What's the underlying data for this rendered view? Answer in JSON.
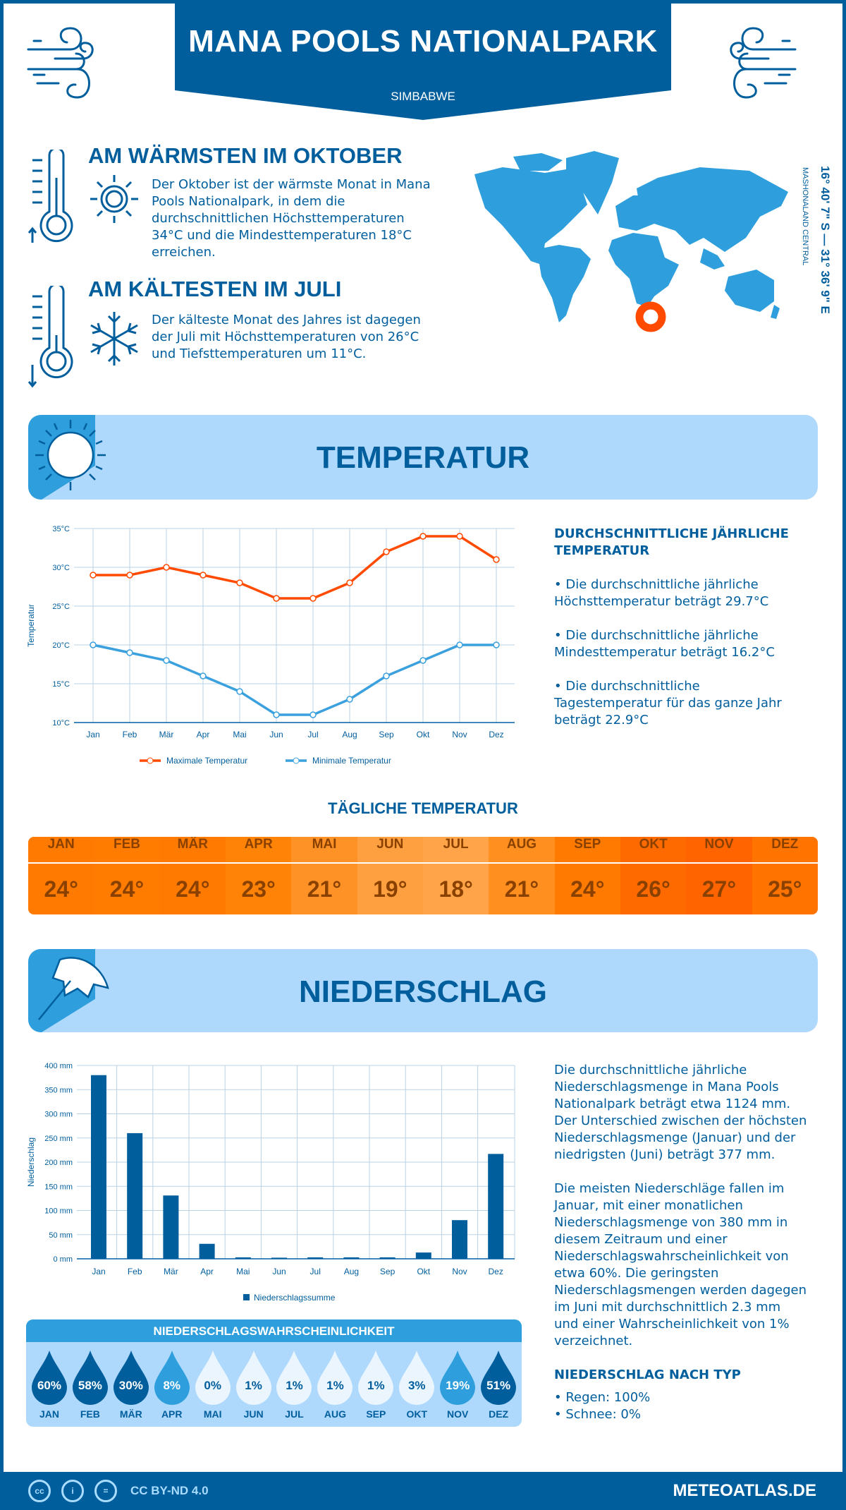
{
  "header": {
    "title": "MANA POOLS NATIONALPARK",
    "country": "SIMBABWE"
  },
  "warmest": {
    "heading": "AM WÄRMSTEN IM OKTOBER",
    "text": "Der Oktober ist der wärmste Monat in Mana Pools Nationalpark, in dem die durchschnittlichen Höchsttemperaturen 34°C und die Mindesttemperaturen 18°C erreichen."
  },
  "coldest": {
    "heading": "AM KÄLTESTEN IM JULI",
    "text": "Der kälteste Monat des Jahres ist dagegen der Juli mit Höchsttemperaturen von 26°C und Tiefsttemperaturen um 11°C."
  },
  "location": {
    "coords": "16° 40' 7\" S — 31° 36' 9\" E",
    "region": "MASHONALAND CENTRAL"
  },
  "temperature_section": {
    "title": "TEMPERATUR",
    "annual_heading": "DURCHSCHNITTLICHE JÄHRLICHE TEMPERATUR",
    "bullets": [
      "• Die durchschnittliche jährliche Höchsttemperatur beträgt 29.7°C",
      "• Die durchschnittliche jährliche Mindesttemperatur beträgt 16.2°C",
      "• Die durchschnittliche Tagestemperatur für das ganze Jahr beträgt 22.9°C"
    ],
    "daily_title": "TÄGLICHE TEMPERATUR",
    "daily": [
      {
        "month": "JAN",
        "value": "24°",
        "color": "#ff7a00"
      },
      {
        "month": "FEB",
        "value": "24°",
        "color": "#ff7c00"
      },
      {
        "month": "MÄR",
        "value": "24°",
        "color": "#ff7a00"
      },
      {
        "month": "APR",
        "value": "23°",
        "color": "#ff8306"
      },
      {
        "month": "MAI",
        "value": "21°",
        "color": "#ff9226"
      },
      {
        "month": "JUN",
        "value": "19°",
        "color": "#ffa040"
      },
      {
        "month": "JUL",
        "value": "18°",
        "color": "#ffa448"
      },
      {
        "month": "AUG",
        "value": "21°",
        "color": "#ff9020"
      },
      {
        "month": "SEP",
        "value": "24°",
        "color": "#ff7a00"
      },
      {
        "month": "OKT",
        "value": "26°",
        "color": "#ff6a00"
      },
      {
        "month": "NOV",
        "value": "27°",
        "color": "#ff6400"
      },
      {
        "month": "DEZ",
        "value": "25°",
        "color": "#ff7300"
      }
    ]
  },
  "precip_section": {
    "title": "NIEDERSCHLAG",
    "paragraph1": "Die durchschnittliche jährliche Niederschlagsmenge in Mana Pools Nationalpark beträgt etwa 1124 mm. Der Unterschied zwischen der höchsten Niederschlagsmenge (Januar) und der niedrigsten (Juni) beträgt 377 mm.",
    "paragraph2": "Die meisten Niederschläge fallen im Januar, mit einer monatlichen Niederschlagsmenge von 380 mm in diesem Zeitraum und einer Niederschlagswahrscheinlichkeit von etwa 60%. Die geringsten Niederschlagsmengen werden dagegen im Juni mit durchschnittlich 2.3 mm und einer Wahrscheinlichkeit von 1% verzeichnet.",
    "type_heading": "NIEDERSCHLAG NACH TYP",
    "types": [
      "• Regen: 100%",
      "• Schnee: 0%"
    ],
    "prob_title": "NIEDERSCHLAGSWAHRSCHEINLICHKEIT",
    "probability": [
      {
        "month": "JAN",
        "value": "60%",
        "level": "high"
      },
      {
        "month": "FEB",
        "value": "58%",
        "level": "high"
      },
      {
        "month": "MÄR",
        "value": "30%",
        "level": "high"
      },
      {
        "month": "APR",
        "value": "8%",
        "level": "mid"
      },
      {
        "month": "MAI",
        "value": "0%",
        "level": "low"
      },
      {
        "month": "JUN",
        "value": "1%",
        "level": "low"
      },
      {
        "month": "JUL",
        "value": "1%",
        "level": "low"
      },
      {
        "month": "AUG",
        "value": "1%",
        "level": "low"
      },
      {
        "month": "SEP",
        "value": "1%",
        "level": "low"
      },
      {
        "month": "OKT",
        "value": "3%",
        "level": "low"
      },
      {
        "month": "NOV",
        "value": "19%",
        "level": "mid"
      },
      {
        "month": "DEZ",
        "value": "51%",
        "level": "high"
      }
    ]
  },
  "colors": {
    "primary": "#005e9d",
    "accent": "#2e9fdc",
    "light": "#aed9fc",
    "max_line": "#ff4a00",
    "min_line": "#3aa0de",
    "marker": "#ff4a00"
  },
  "footer": {
    "license": "CC BY-ND 4.0",
    "site": "METEOATLAS.DE",
    "icons": [
      "cc-icon",
      "by-icon",
      "nd-icon"
    ]
  },
  "chart_data": [
    {
      "type": "line",
      "ylabel": "Temperatur",
      "ylim": [
        10,
        35
      ],
      "yticks": [
        "10°C",
        "15°C",
        "20°C",
        "25°C",
        "30°C",
        "35°C"
      ],
      "grid": true,
      "legend": "bottom",
      "categories": [
        "Jan",
        "Feb",
        "Mär",
        "Apr",
        "Mai",
        "Jun",
        "Jul",
        "Aug",
        "Sep",
        "Okt",
        "Nov",
        "Dez"
      ],
      "series": [
        {
          "name": "Maximale Temperatur",
          "values": [
            29,
            29,
            30,
            29,
            28,
            26,
            26,
            28,
            32,
            34,
            34,
            31
          ]
        },
        {
          "name": "Minimale Temperatur",
          "values": [
            20,
            19,
            18,
            16,
            14,
            11,
            11,
            13,
            16,
            18,
            20,
            20
          ]
        }
      ]
    },
    {
      "type": "bar",
      "ylabel": "Niederschlag",
      "ylim": [
        0,
        400
      ],
      "yticks": [
        "0 mm",
        "50 mm",
        "100 mm",
        "150 mm",
        "200 mm",
        "250 mm",
        "300 mm",
        "350 mm",
        "400 mm"
      ],
      "grid": true,
      "legend": "bottom",
      "categories": [
        "Jan",
        "Feb",
        "Mär",
        "Apr",
        "Mai",
        "Jun",
        "Jul",
        "Aug",
        "Sep",
        "Okt",
        "Nov",
        "Dez"
      ],
      "series": [
        {
          "name": "Niederschlagssumme",
          "values": [
            380,
            260,
            131,
            31,
            3,
            2.3,
            3,
            3,
            3,
            13,
            80,
            217
          ]
        }
      ]
    }
  ]
}
